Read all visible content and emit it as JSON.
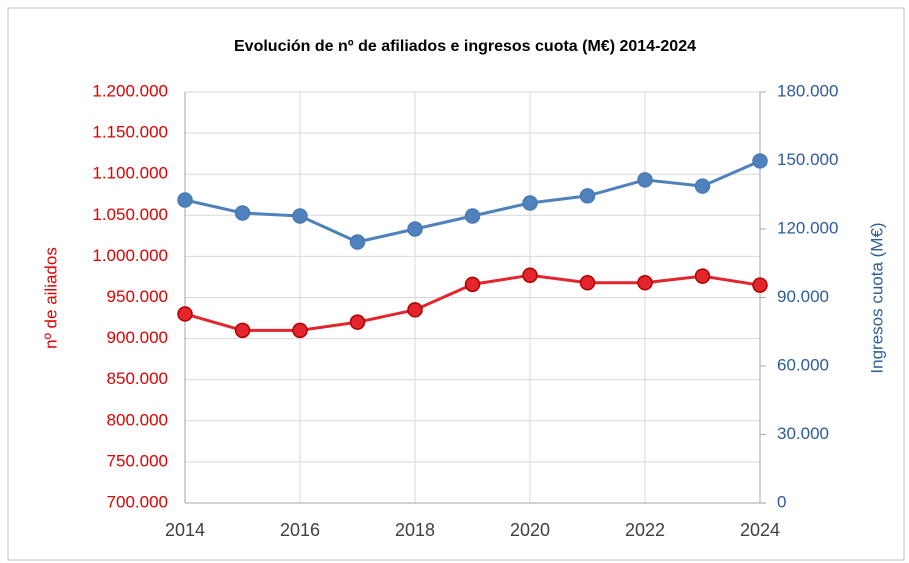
{
  "chart_data": {
    "type": "line",
    "title": "Evolución de nº de afiliados e ingresos cuota (M€) 2014-2024",
    "ylabel": "nº de ailiados",
    "y2label": "Ingresos cuota (M€)",
    "x": [
      2014,
      2015,
      2016,
      2017,
      2018,
      2019,
      2020,
      2021,
      2022,
      2023,
      2024
    ],
    "xlim": [
      2014,
      2024
    ],
    "xticks": [
      2014,
      2016,
      2018,
      2020,
      2022,
      2024
    ],
    "ylim": [
      700000,
      1200000
    ],
    "yticks": [
      {
        "value": 700000,
        "label": "700.000"
      },
      {
        "value": 750000,
        "label": "750.000"
      },
      {
        "value": 800000,
        "label": "800.000"
      },
      {
        "value": 850000,
        "label": "850.000"
      },
      {
        "value": 900000,
        "label": "900.000"
      },
      {
        "value": 950000,
        "label": "950.000"
      },
      {
        "value": 1000000,
        "label": "1.000.000"
      },
      {
        "value": 1050000,
        "label": "1.050.000"
      },
      {
        "value": 1100000,
        "label": "1.100.000"
      },
      {
        "value": 1150000,
        "label": "1.150.000"
      },
      {
        "value": 1200000,
        "label": "1.200.000"
      }
    ],
    "y2lim": [
      0,
      180000
    ],
    "y2ticks": [
      0,
      {
        "value": 30000,
        "label": "30.000"
      },
      {
        "value": 60000,
        "label": "60.000"
      },
      {
        "value": 90000,
        "label": "90.000"
      },
      {
        "value": 120000,
        "label": "120.000"
      },
      {
        "value": 150000,
        "label": "150.000"
      },
      {
        "value": 180000,
        "label": "180.000"
      }
    ],
    "grid": true,
    "series": [
      {
        "color": "#e3262d",
        "axis": "y",
        "values": [
          930000,
          910000,
          910000,
          920000,
          935000,
          966000,
          977000,
          968000,
          968000,
          976000,
          965000
        ]
      },
      {
        "color": "#4f81bd",
        "axis": "y2",
        "values": [
          132700,
          127000,
          125700,
          114300,
          120000,
          125700,
          131400,
          134500,
          141500,
          138800,
          149800
        ]
      }
    ]
  }
}
